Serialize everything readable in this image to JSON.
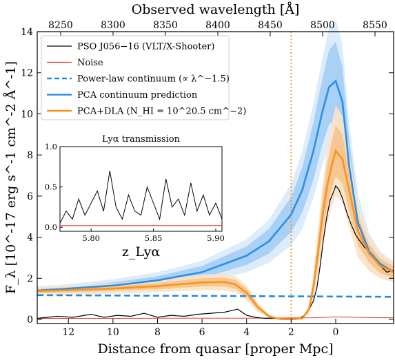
{
  "chart_data": {
    "type": "line",
    "xlabel_bottom": "Distance from quasar [proper Mpc]",
    "xlabel_top": "Observed wavelength [Å]",
    "ylabel": "F_λ [10^-17 erg s^-1 cm^-2 Å^-1]",
    "xlim_distance": [
      13.4,
      -2.6
    ],
    "ylim": [
      -0.2,
      14
    ],
    "distance_ticks": [
      12,
      10,
      8,
      6,
      4,
      2,
      0
    ],
    "wavelength_ticks": [
      8250,
      8300,
      8350,
      8400,
      8450,
      8500,
      8550
    ],
    "y_ticks": [
      0,
      2,
      4,
      6,
      8,
      10,
      12,
      14
    ],
    "vline_distance": 2.0,
    "legend": [
      {
        "label": "PSO J056−16 (VLT/X-Shooter)",
        "color": "#000000",
        "style": "solid"
      },
      {
        "label": "Noise",
        "color": "#e8362c",
        "style": "solid"
      },
      {
        "label": "Power-law continuum (∝ λ^−1.5)",
        "color": "#1f8be0",
        "style": "dashed"
      },
      {
        "label": "PCA continuum prediction",
        "color": "#2a8fe8",
        "style": "solid"
      },
      {
        "label": "PCA+DLA (N_HI = 10^20.5 cm^−2)",
        "color": "#f7931e",
        "style": "solid"
      }
    ],
    "series": [
      {
        "name": "PCA continuum prediction",
        "x": [
          13.4,
          12,
          10,
          8,
          6,
          4,
          3,
          2,
          1.5,
          1,
          0.6,
          0.3,
          0,
          -0.3,
          -0.6,
          -1,
          -1.5,
          -2,
          -2.6
        ],
        "y": [
          1.4,
          1.5,
          1.65,
          1.9,
          2.3,
          3.1,
          3.8,
          5.1,
          6.3,
          8.2,
          10.1,
          11.3,
          11.6,
          10.6,
          7.5,
          4.7,
          3.3,
          2.7,
          2.3
        ],
        "band_inner": [
          0.1,
          0.1,
          0.15,
          0.2,
          0.3,
          0.45,
          0.6,
          0.85,
          1.1,
          1.4,
          1.6,
          1.8,
          1.9,
          1.7,
          1.3,
          0.8,
          0.5,
          0.35,
          0.3
        ],
        "band_outer": [
          0.2,
          0.22,
          0.3,
          0.4,
          0.55,
          0.8,
          1.05,
          1.5,
          1.9,
          2.3,
          2.6,
          2.9,
          3.0,
          2.8,
          2.1,
          1.4,
          0.9,
          0.6,
          0.5
        ]
      },
      {
        "name": "PCA+DLA",
        "x": [
          13.4,
          12,
          10,
          8,
          6,
          5,
          4.5,
          4,
          3.5,
          3,
          2.5,
          2,
          1.5,
          1.2,
          1,
          0.8,
          0.6,
          0.4,
          0.2,
          0,
          -0.3,
          -0.6,
          -1,
          -1.5,
          -2,
          -2.6
        ],
        "y": [
          1.38,
          1.42,
          1.5,
          1.62,
          1.8,
          1.82,
          1.7,
          1.3,
          0.6,
          0.15,
          0.02,
          0.0,
          0.05,
          0.5,
          1.6,
          3.2,
          5.0,
          6.4,
          7.4,
          8.2,
          7.8,
          6.3,
          4.3,
          3.2,
          2.6,
          2.3
        ],
        "band_inner": [
          0.1,
          0.1,
          0.12,
          0.15,
          0.2,
          0.22,
          0.22,
          0.2,
          0.12,
          0.05,
          0.02,
          0.01,
          0.02,
          0.1,
          0.35,
          0.6,
          0.85,
          1.05,
          1.15,
          1.25,
          1.2,
          1.0,
          0.7,
          0.45,
          0.35,
          0.3
        ],
        "band_outer": [
          0.2,
          0.22,
          0.25,
          0.3,
          0.38,
          0.4,
          0.4,
          0.36,
          0.22,
          0.1,
          0.03,
          0.02,
          0.04,
          0.2,
          0.6,
          1.1,
          1.5,
          1.8,
          2.0,
          2.2,
          2.1,
          1.8,
          1.3,
          0.85,
          0.6,
          0.5
        ]
      },
      {
        "name": "Power-law continuum",
        "x": [
          13.4,
          -2.6
        ],
        "y": [
          1.18,
          1.1
        ]
      },
      {
        "name": "PSO J056−16 (VLT/X-Shooter)",
        "x": [
          13.4,
          12.5,
          11.8,
          11,
          10.4,
          9.8,
          9.2,
          8.6,
          8,
          7.4,
          6.8,
          6.2,
          5.6,
          5.0,
          4.4,
          4.0,
          3.6,
          3.2,
          2.8,
          2.4,
          2.0,
          1.6,
          1.3,
          1.0,
          0.85,
          0.7,
          0.55,
          0.4,
          0.25,
          0.1,
          0,
          -0.15,
          -0.3,
          -0.5,
          -0.7,
          -0.9,
          -1.1,
          -1.3,
          -1.5,
          -1.7,
          -2.0,
          -2.3,
          -2.6
        ],
        "y": [
          0.05,
          0.15,
          0.1,
          0.25,
          0.1,
          0.2,
          0.15,
          0.3,
          0.1,
          0.2,
          0.15,
          0.25,
          0.3,
          0.35,
          0.5,
          0.2,
          0.1,
          0.05,
          0.05,
          0.02,
          0.02,
          0.05,
          0.3,
          0.9,
          1.5,
          2.6,
          3.9,
          5.0,
          5.8,
          6.2,
          6.5,
          6.3,
          5.9,
          5.2,
          4.6,
          4.1,
          3.8,
          3.5,
          3.3,
          3.1,
          2.6,
          2.3,
          2.4
        ]
      },
      {
        "name": "Noise",
        "x": [
          13.4,
          10,
          6,
          4,
          2,
          1,
          0.5,
          0,
          -0.5,
          -1,
          -2,
          -2.6
        ],
        "y": [
          0.05,
          0.05,
          0.06,
          0.06,
          0.07,
          0.08,
          0.1,
          0.12,
          0.11,
          0.1,
          0.08,
          0.08
        ]
      }
    ],
    "inset": {
      "title": "Lyα transmission",
      "xlabel": "z_Lyα",
      "xlim": [
        5.775,
        5.905
      ],
      "ylim": [
        -0.05,
        1.0
      ],
      "x_ticks": [
        5.8,
        5.85,
        5.9
      ],
      "y_ticks": [
        0.0,
        0.5,
        1.0
      ],
      "transmission_x": [
        5.775,
        5.78,
        5.785,
        5.79,
        5.795,
        5.8,
        5.805,
        5.81,
        5.815,
        5.82,
        5.825,
        5.83,
        5.835,
        5.84,
        5.845,
        5.85,
        5.855,
        5.86,
        5.865,
        5.87,
        5.875,
        5.88,
        5.885,
        5.89,
        5.895,
        5.9,
        5.905
      ],
      "transmission_y": [
        0.05,
        0.2,
        0.1,
        0.35,
        0.15,
        0.3,
        0.45,
        0.2,
        0.7,
        0.25,
        0.1,
        0.4,
        0.2,
        0.15,
        0.5,
        0.3,
        0.1,
        0.6,
        0.25,
        0.35,
        0.15,
        0.55,
        0.2,
        0.4,
        0.15,
        0.3,
        0.1
      ],
      "noise_x": [
        5.775,
        5.905
      ],
      "noise_y": [
        0.02,
        0.02
      ]
    }
  }
}
